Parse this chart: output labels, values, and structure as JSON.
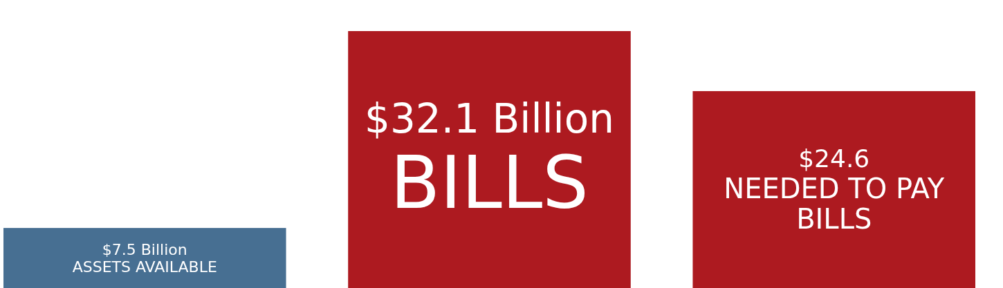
{
  "chart_data": {
    "type": "bar",
    "categories": [
      "ASSETS AVAILABLE",
      "BILLS",
      "NEEDED TO PAY BILLS"
    ],
    "values": [
      7.5,
      32.1,
      24.6
    ],
    "colors": [
      "#476f92",
      "#ad1a20",
      "#ad1a20"
    ],
    "value_labels": [
      "$7.5 Billion",
      "$32.1 Billion",
      "$24.6"
    ],
    "tick_labels": false
  }
}
